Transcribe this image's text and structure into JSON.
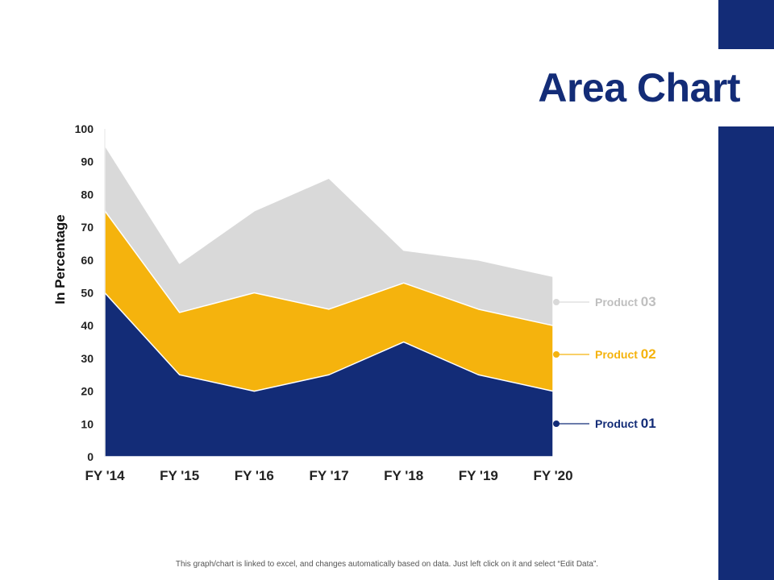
{
  "title": "Area Chart",
  "footer_note": "This graph/chart is linked to excel, and changes automatically based on data. Just left click on it and select “Edit Data”.",
  "colors": {
    "accent": "#132c77",
    "product_01": "#132c77",
    "product_02": "#f5b30d",
    "product_03": "#d9d9d9",
    "product_03_text": "#bfbfbf",
    "axis_text": "#222222"
  },
  "chart_data": {
    "type": "area",
    "stacked": true,
    "title": "",
    "xlabel": "",
    "ylabel": "In Percentage",
    "ylim": [
      0,
      100
    ],
    "yticks": [
      0,
      10,
      20,
      30,
      40,
      50,
      60,
      70,
      80,
      90,
      100
    ],
    "categories": [
      "FY '14",
      "FY '15",
      "FY '16",
      "FY '17",
      "FY '18",
      "FY '19",
      "FY '20"
    ],
    "series": [
      {
        "name": "Product 01",
        "label_prefix": "Product ",
        "label_number": "01",
        "values": [
          50,
          25,
          20,
          25,
          35,
          25,
          20
        ]
      },
      {
        "name": "Product 02",
        "label_prefix": "Product ",
        "label_number": "02",
        "values": [
          25,
          19,
          30,
          20,
          18,
          20,
          20
        ]
      },
      {
        "name": "Product 03",
        "label_prefix": "Product ",
        "label_number": "03",
        "values": [
          20,
          15,
          25,
          40,
          10,
          15,
          15
        ]
      }
    ],
    "legend_position": "right"
  }
}
